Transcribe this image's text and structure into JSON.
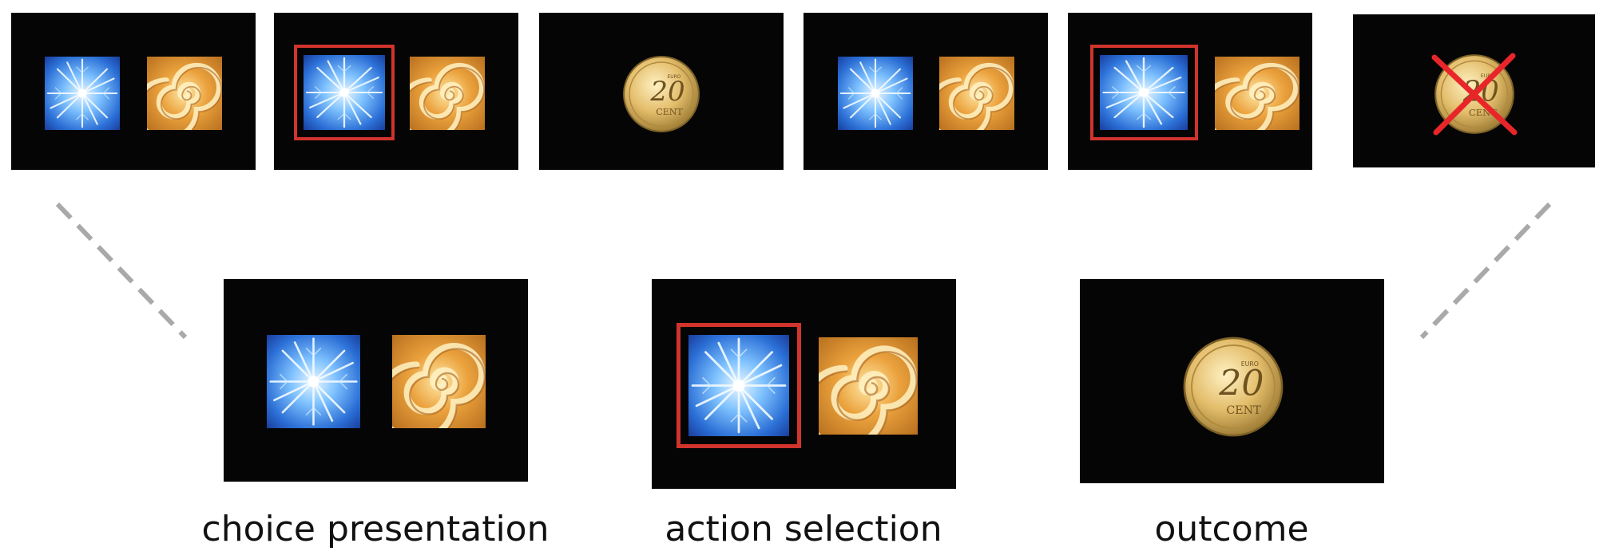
{
  "icons": {
    "stimulus_a": "blue-fractal-icon",
    "stimulus_b": "orange-spiral-icon",
    "reward": "coin-20-cent-icon",
    "no_reward": "red-cross-icon"
  },
  "colors": {
    "screen": "#050505",
    "selection_frame": "#d0342c",
    "cross": "#e8262a",
    "connector": "#a9a9a9",
    "caption_text": "#111111"
  },
  "coin": {
    "value": "20",
    "sub_label": "CENT",
    "tiny_label": "EURO"
  },
  "timeline": [
    {
      "state": "choice presentation"
    },
    {
      "state": "action selection"
    },
    {
      "state": "outcome",
      "rewarded": true
    },
    {
      "state": "choice presentation"
    },
    {
      "state": "action selection"
    },
    {
      "state": "outcome",
      "rewarded": false
    }
  ],
  "phases": [
    {
      "caption": "choice presentation"
    },
    {
      "caption": "action selection"
    },
    {
      "caption": "outcome"
    }
  ]
}
